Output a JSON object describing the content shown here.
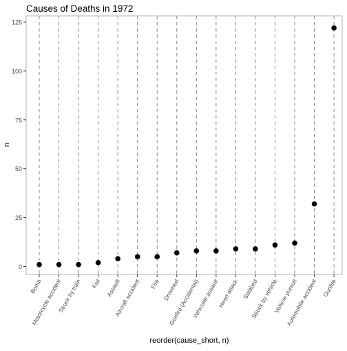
{
  "chart_data": {
    "type": "scatter",
    "title": "Causes of Deaths in 1972",
    "xlabel": "reorder(cause_short, n)",
    "ylabel": "n",
    "ylim": [
      -5,
      127
    ],
    "y_ticks": [
      0,
      25,
      50,
      75,
      100,
      125
    ],
    "grid": "dashed vertical lines at each category",
    "legend": "none",
    "colors": {
      "point": "#000000",
      "grid": "#7f7f7f",
      "axis_text": "#4d4d4d",
      "panel_border": "#b3b3b3"
    },
    "categories": [
      "Bomb",
      "Motorcycle accident",
      "Struck by train",
      "Fall",
      "Assault",
      "Aircraft accident",
      "Fire",
      "Drowned",
      "Gunfire (Accidental)",
      "Vehicular assault",
      "Heart attack",
      "Stabbed",
      "Struck by vehicle",
      "Vehicle pursuit",
      "Automobile accident",
      "Gunfire"
    ],
    "values": [
      1,
      1,
      1,
      2,
      4,
      5,
      5,
      7,
      8,
      8,
      9,
      9,
      11,
      12,
      32,
      122
    ]
  }
}
